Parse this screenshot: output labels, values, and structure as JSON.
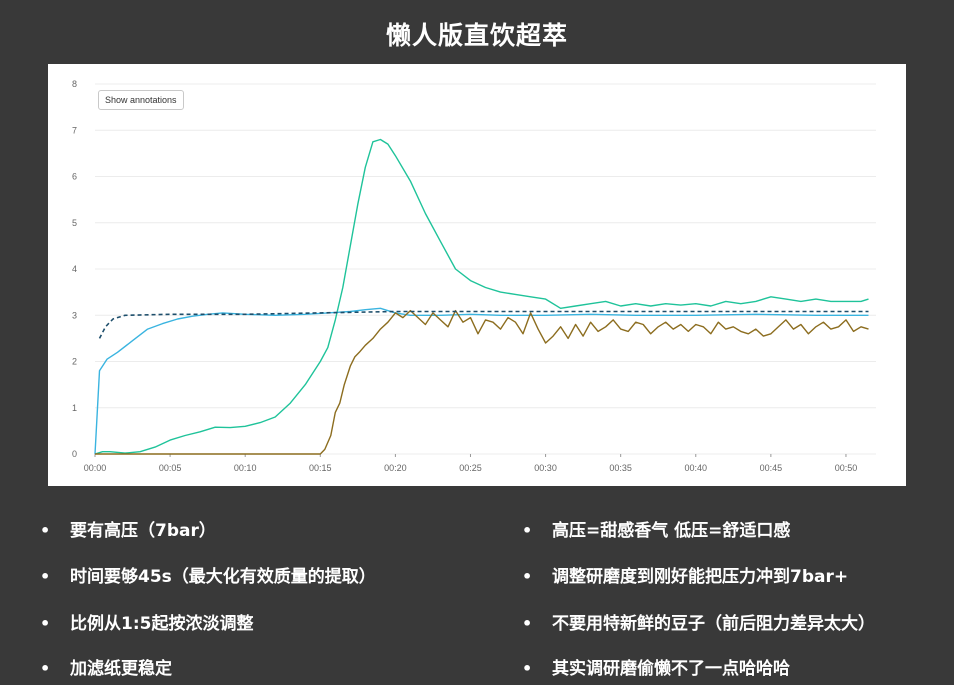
{
  "page": {
    "title": "懒人版直饮超萃",
    "left_bullets": [
      "要有高压（7bar）",
      "时间要够45s（最大化有效质量的提取）",
      "比例从1:5起按浓淡调整",
      "加滤纸更稳定"
    ],
    "right_bullets": [
      "高压=甜感香气  低压=舒适口感",
      "调整研磨度到刚好能把压力冲到7bar+",
      "不要用特新鲜的豆子（前后阻力差异太大）",
      "其实调研磨偷懒不了一点哈哈哈"
    ],
    "bullet_glyph": "•",
    "button_label": "Show annotations"
  },
  "chart_data": {
    "type": "line",
    "ylim": [
      0,
      8
    ],
    "yticks": [
      "0",
      "1",
      "2",
      "3",
      "4",
      "5",
      "6",
      "7",
      "8"
    ],
    "xlim_seconds": [
      0,
      52
    ],
    "xticks": [
      "00:00",
      "00:05",
      "00:10",
      "00:15",
      "00:20",
      "00:25",
      "00:30",
      "00:35",
      "00:40",
      "00:45",
      "00:50"
    ],
    "grid": true,
    "legend": "none",
    "series": [
      {
        "color": "#1fc39a",
        "style": "solid",
        "points": [
          [
            0,
            0
          ],
          [
            0.5,
            0.05
          ],
          [
            1,
            0.05
          ],
          [
            2,
            0.02
          ],
          [
            3,
            0.05
          ],
          [
            4,
            0.15
          ],
          [
            5,
            0.3
          ],
          [
            6,
            0.4
          ],
          [
            7,
            0.48
          ],
          [
            8,
            0.58
          ],
          [
            9,
            0.57
          ],
          [
            10,
            0.6
          ],
          [
            11,
            0.68
          ],
          [
            12,
            0.8
          ],
          [
            13,
            1.1
          ],
          [
            14,
            1.5
          ],
          [
            15,
            2.0
          ],
          [
            15.5,
            2.3
          ],
          [
            16,
            2.9
          ],
          [
            16.5,
            3.6
          ],
          [
            17,
            4.5
          ],
          [
            17.5,
            5.4
          ],
          [
            18,
            6.2
          ],
          [
            18.5,
            6.75
          ],
          [
            19,
            6.8
          ],
          [
            19.5,
            6.7
          ],
          [
            20,
            6.45
          ],
          [
            21,
            5.9
          ],
          [
            22,
            5.2
          ],
          [
            23,
            4.6
          ],
          [
            24,
            4.0
          ],
          [
            25,
            3.75
          ],
          [
            26,
            3.6
          ],
          [
            27,
            3.5
          ],
          [
            28,
            3.45
          ],
          [
            29,
            3.4
          ],
          [
            30,
            3.35
          ],
          [
            31,
            3.15
          ],
          [
            32,
            3.2
          ],
          [
            33,
            3.25
          ],
          [
            34,
            3.3
          ],
          [
            35,
            3.2
          ],
          [
            36,
            3.25
          ],
          [
            37,
            3.2
          ],
          [
            38,
            3.25
          ],
          [
            39,
            3.22
          ],
          [
            40,
            3.25
          ],
          [
            41,
            3.2
          ],
          [
            42,
            3.3
          ],
          [
            43,
            3.25
          ],
          [
            44,
            3.3
          ],
          [
            45,
            3.4
          ],
          [
            46,
            3.35
          ],
          [
            47,
            3.3
          ],
          [
            48,
            3.35
          ],
          [
            49,
            3.3
          ],
          [
            50,
            3.3
          ],
          [
            51,
            3.3
          ],
          [
            51.5,
            3.35
          ]
        ]
      },
      {
        "color": "#3ab4e0",
        "style": "solid",
        "points": [
          [
            0,
            0
          ],
          [
            0.3,
            1.8
          ],
          [
            0.8,
            2.05
          ],
          [
            1.5,
            2.2
          ],
          [
            2.5,
            2.45
          ],
          [
            3.5,
            2.7
          ],
          [
            4.5,
            2.82
          ],
          [
            5.5,
            2.92
          ],
          [
            6.5,
            2.98
          ],
          [
            7.5,
            3.02
          ],
          [
            8.5,
            3.05
          ],
          [
            10,
            3.02
          ],
          [
            12,
            3.0
          ],
          [
            14,
            3.02
          ],
          [
            15.5,
            3.05
          ],
          [
            17,
            3.08
          ],
          [
            18,
            3.12
          ],
          [
            19,
            3.15
          ],
          [
            20,
            3.05
          ],
          [
            21,
            3.0
          ],
          [
            23,
            3.0
          ],
          [
            25,
            3.02
          ],
          [
            27,
            3.0
          ],
          [
            30,
            3.0
          ],
          [
            33,
            3.02
          ],
          [
            36,
            3.0
          ],
          [
            40,
            3.0
          ],
          [
            44,
            3.02
          ],
          [
            48,
            3.0
          ],
          [
            51.5,
            3.0
          ]
        ]
      },
      {
        "color": "#8c6d1f",
        "style": "solid",
        "points": [
          [
            0,
            0
          ],
          [
            15,
            0
          ],
          [
            15.3,
            0.1
          ],
          [
            15.7,
            0.4
          ],
          [
            16,
            0.9
          ],
          [
            16.3,
            1.1
          ],
          [
            16.6,
            1.5
          ],
          [
            17,
            1.9
          ],
          [
            17.3,
            2.1
          ],
          [
            17.6,
            2.2
          ],
          [
            18,
            2.35
          ],
          [
            18.5,
            2.5
          ],
          [
            19,
            2.7
          ],
          [
            19.5,
            2.85
          ],
          [
            20,
            3.05
          ],
          [
            20.5,
            2.95
          ],
          [
            21,
            3.1
          ],
          [
            22,
            2.8
          ],
          [
            22.5,
            3.05
          ],
          [
            23,
            2.9
          ],
          [
            23.5,
            2.75
          ],
          [
            24,
            3.1
          ],
          [
            24.5,
            2.85
          ],
          [
            25,
            2.95
          ],
          [
            25.5,
            2.6
          ],
          [
            26,
            2.9
          ],
          [
            26.5,
            2.85
          ],
          [
            27,
            2.7
          ],
          [
            27.5,
            2.95
          ],
          [
            28,
            2.85
          ],
          [
            28.5,
            2.6
          ],
          [
            29,
            3.05
          ],
          [
            29.5,
            2.7
          ],
          [
            30,
            2.4
          ],
          [
            30.5,
            2.55
          ],
          [
            31,
            2.75
          ],
          [
            31.5,
            2.5
          ],
          [
            32,
            2.8
          ],
          [
            32.5,
            2.55
          ],
          [
            33,
            2.85
          ],
          [
            33.5,
            2.65
          ],
          [
            34,
            2.75
          ],
          [
            34.5,
            2.9
          ],
          [
            35,
            2.7
          ],
          [
            35.5,
            2.65
          ],
          [
            36,
            2.85
          ],
          [
            36.5,
            2.8
          ],
          [
            37,
            2.6
          ],
          [
            37.5,
            2.75
          ],
          [
            38,
            2.85
          ],
          [
            38.5,
            2.7
          ],
          [
            39,
            2.8
          ],
          [
            39.5,
            2.65
          ],
          [
            40,
            2.8
          ],
          [
            40.5,
            2.75
          ],
          [
            41,
            2.6
          ],
          [
            41.5,
            2.85
          ],
          [
            42,
            2.7
          ],
          [
            42.5,
            2.75
          ],
          [
            43,
            2.65
          ],
          [
            43.5,
            2.6
          ],
          [
            44,
            2.7
          ],
          [
            44.5,
            2.55
          ],
          [
            45,
            2.6
          ],
          [
            45.5,
            2.75
          ],
          [
            46,
            2.9
          ],
          [
            46.5,
            2.7
          ],
          [
            47,
            2.8
          ],
          [
            47.5,
            2.6
          ],
          [
            48,
            2.75
          ],
          [
            48.5,
            2.85
          ],
          [
            49,
            2.7
          ],
          [
            49.5,
            2.75
          ],
          [
            50,
            2.9
          ],
          [
            50.5,
            2.65
          ],
          [
            51,
            2.75
          ],
          [
            51.5,
            2.7
          ]
        ]
      },
      {
        "color": "#1d4e6b",
        "style": "dashed",
        "points": [
          [
            0.3,
            2.5
          ],
          [
            0.7,
            2.75
          ],
          [
            1.2,
            2.92
          ],
          [
            2,
            3.0
          ],
          [
            5,
            3.02
          ],
          [
            10,
            3.02
          ],
          [
            15,
            3.05
          ],
          [
            20,
            3.08
          ],
          [
            25,
            3.08
          ],
          [
            30,
            3.08
          ],
          [
            35,
            3.08
          ],
          [
            40,
            3.08
          ],
          [
            45,
            3.08
          ],
          [
            51.5,
            3.08
          ]
        ]
      }
    ]
  }
}
